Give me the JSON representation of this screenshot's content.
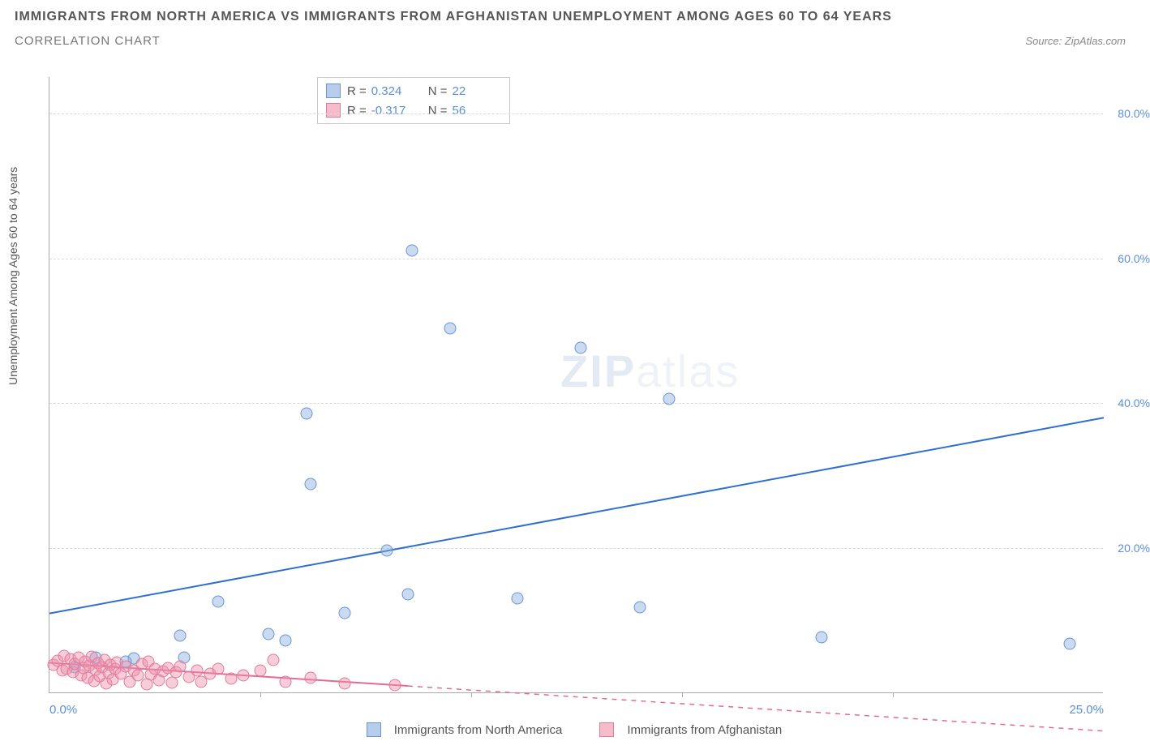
{
  "title": "IMMIGRANTS FROM NORTH AMERICA VS IMMIGRANTS FROM AFGHANISTAN UNEMPLOYMENT AMONG AGES 60 TO 64 YEARS",
  "subtitle": "CORRELATION CHART",
  "source_label": "Source: ZipAtlas.com",
  "y_axis_label": "Unemployment Among Ages 60 to 64 years",
  "chart": {
    "type": "scatter",
    "background_color": "#ffffff",
    "grid_color": "#d9d9d9",
    "axis_color": "#aaaaaa",
    "x_min": 0.0,
    "x_max": 25.0,
    "x_tick_left": "0.0%",
    "x_tick_right": "25.0%",
    "y_min": 0.0,
    "y_max": 85.0,
    "y_ticks": [
      20.0,
      40.0,
      60.0,
      80.0
    ],
    "y_tick_labels": [
      "20.0%",
      "40.0%",
      "60.0%",
      "80.0%"
    ],
    "x_minor_count": 5,
    "series": [
      {
        "name": "Immigrants from North America",
        "color_fill": "rgba(137,172,222,0.45)",
        "color_stroke": "#6a95cf",
        "marker_size": 15,
        "r_value": "0.324",
        "n_value": "22",
        "trend": {
          "x1": 0.0,
          "y1": 11.0,
          "x2": 25.0,
          "y2": 38.0,
          "color": "#2f6fd0",
          "dash": "none"
        },
        "points": [
          {
            "x": 8.6,
            "y": 61.0
          },
          {
            "x": 9.5,
            "y": 50.2
          },
          {
            "x": 12.6,
            "y": 47.5
          },
          {
            "x": 14.7,
            "y": 40.5
          },
          {
            "x": 6.1,
            "y": 38.5
          },
          {
            "x": 6.2,
            "y": 28.8
          },
          {
            "x": 8.0,
            "y": 19.6
          },
          {
            "x": 8.5,
            "y": 13.5
          },
          {
            "x": 14.0,
            "y": 11.8
          },
          {
            "x": 7.0,
            "y": 11.0
          },
          {
            "x": 4.0,
            "y": 12.5
          },
          {
            "x": 5.2,
            "y": 8.0
          },
          {
            "x": 5.6,
            "y": 7.2
          },
          {
            "x": 3.1,
            "y": 7.8
          },
          {
            "x": 3.2,
            "y": 4.8
          },
          {
            "x": 2.0,
            "y": 4.7
          },
          {
            "x": 1.1,
            "y": 4.8
          },
          {
            "x": 1.8,
            "y": 4.2
          },
          {
            "x": 0.6,
            "y": 3.5
          },
          {
            "x": 18.3,
            "y": 7.6
          },
          {
            "x": 24.2,
            "y": 6.7
          },
          {
            "x": 11.1,
            "y": 13.0
          }
        ]
      },
      {
        "name": "Immigrants from Afghanistan",
        "color_fill": "rgba(238,144,170,0.45)",
        "color_stroke": "#e07b9c",
        "marker_size": 15,
        "r_value": "-0.317",
        "n_value": "56",
        "trend": {
          "x1": 0.0,
          "y1": 4.2,
          "x2": 8.5,
          "y2": 1.0,
          "color": "#e46a93",
          "dash_extend_to": 25.0
        },
        "points": [
          {
            "x": 0.1,
            "y": 3.8
          },
          {
            "x": 0.2,
            "y": 4.4
          },
          {
            "x": 0.3,
            "y": 3.0
          },
          {
            "x": 0.35,
            "y": 5.0
          },
          {
            "x": 0.4,
            "y": 3.2
          },
          {
            "x": 0.5,
            "y": 4.6
          },
          {
            "x": 0.55,
            "y": 2.8
          },
          {
            "x": 0.6,
            "y": 3.9
          },
          {
            "x": 0.7,
            "y": 4.8
          },
          {
            "x": 0.75,
            "y": 2.4
          },
          {
            "x": 0.8,
            "y": 3.4
          },
          {
            "x": 0.85,
            "y": 4.2
          },
          {
            "x": 0.9,
            "y": 2.0
          },
          {
            "x": 0.95,
            "y": 3.7
          },
          {
            "x": 1.0,
            "y": 4.9
          },
          {
            "x": 1.05,
            "y": 1.6
          },
          {
            "x": 1.1,
            "y": 3.1
          },
          {
            "x": 1.15,
            "y": 4.0
          },
          {
            "x": 1.2,
            "y": 2.2
          },
          {
            "x": 1.25,
            "y": 3.5
          },
          {
            "x": 1.3,
            "y": 4.5
          },
          {
            "x": 1.35,
            "y": 1.2
          },
          {
            "x": 1.4,
            "y": 2.7
          },
          {
            "x": 1.45,
            "y": 3.8
          },
          {
            "x": 1.5,
            "y": 1.8
          },
          {
            "x": 1.55,
            "y": 3.2
          },
          {
            "x": 1.6,
            "y": 4.1
          },
          {
            "x": 1.7,
            "y": 2.6
          },
          {
            "x": 1.8,
            "y": 3.6
          },
          {
            "x": 1.9,
            "y": 1.4
          },
          {
            "x": 2.0,
            "y": 3.0
          },
          {
            "x": 2.1,
            "y": 2.3
          },
          {
            "x": 2.2,
            "y": 3.9
          },
          {
            "x": 2.3,
            "y": 1.1
          },
          {
            "x": 2.35,
            "y": 4.3
          },
          {
            "x": 2.4,
            "y": 2.5
          },
          {
            "x": 2.5,
            "y": 3.3
          },
          {
            "x": 2.6,
            "y": 1.7
          },
          {
            "x": 2.7,
            "y": 2.9
          },
          {
            "x": 2.8,
            "y": 3.4
          },
          {
            "x": 2.9,
            "y": 1.3
          },
          {
            "x": 3.0,
            "y": 2.8
          },
          {
            "x": 3.1,
            "y": 3.6
          },
          {
            "x": 3.3,
            "y": 2.1
          },
          {
            "x": 3.5,
            "y": 3.0
          },
          {
            "x": 3.6,
            "y": 1.5
          },
          {
            "x": 3.8,
            "y": 2.6
          },
          {
            "x": 4.0,
            "y": 3.2
          },
          {
            "x": 4.3,
            "y": 1.9
          },
          {
            "x": 4.6,
            "y": 2.4
          },
          {
            "x": 5.0,
            "y": 3.0
          },
          {
            "x": 5.3,
            "y": 4.5
          },
          {
            "x": 5.6,
            "y": 1.4
          },
          {
            "x": 6.2,
            "y": 2.0
          },
          {
            "x": 7.0,
            "y": 1.2
          },
          {
            "x": 8.2,
            "y": 1.0
          }
        ]
      }
    ],
    "legend_labels": {
      "r": "R =",
      "n": "N ="
    },
    "bottom_legend": [
      "Immigrants from North America",
      "Immigrants from Afghanistan"
    ]
  },
  "watermark": {
    "part1": "ZIP",
    "part2": "atlas"
  }
}
